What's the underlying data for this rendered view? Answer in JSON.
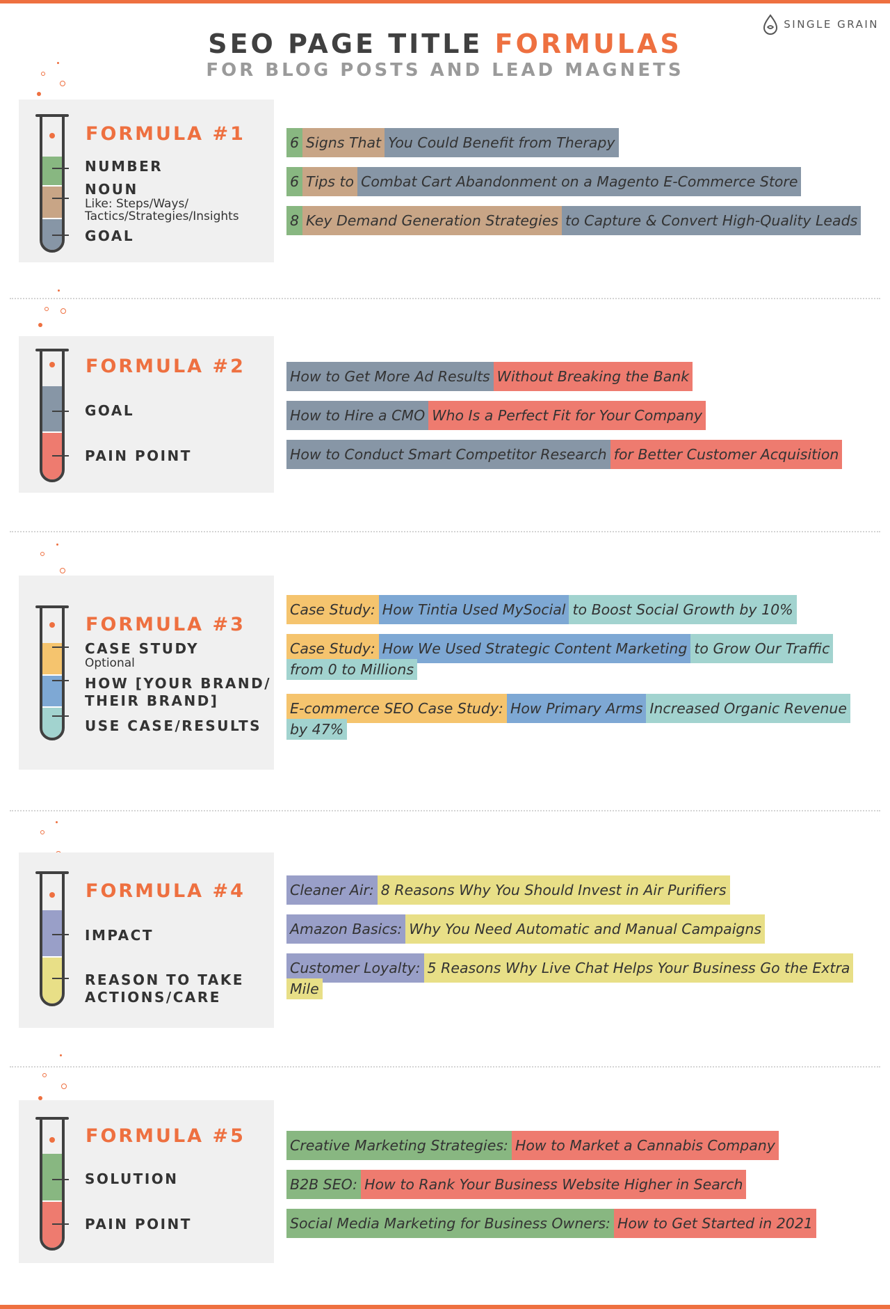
{
  "brand": {
    "name": "SINGLE GRAIN"
  },
  "header": {
    "title_main": "SEO PAGE TITLE",
    "title_accent": "FORMULAS",
    "subtitle": "FOR BLOG POSTS AND LEAD MAGNETS"
  },
  "colors": {
    "accent": "#ee7040",
    "number": "#88b781",
    "noun": "#c8a586",
    "goal": "#8796a6",
    "pain_point": "#ee7b6f",
    "case_study": "#f5c46e",
    "how_brand": "#7ea8d4",
    "use_case": "#a2d3cf",
    "impact": "#999fc8",
    "reason": "#e8df87",
    "solution": "#88b781"
  },
  "formulas": [
    {
      "title": "FORMULA #1",
      "labels": [
        "NUMBER",
        "NOUN",
        "GOAL"
      ],
      "noun_note": "Like: Steps/Ways/",
      "noun_note2": "Tactics/Strategies/Insights",
      "examples": [
        [
          "6",
          "Signs That",
          "You Could Benefit from Therapy"
        ],
        [
          "6",
          "Tips to",
          "Combat Cart Abandonment on a Magento E-Commerce Store"
        ],
        [
          "8",
          "Key Demand Generation Strategies",
          "to Capture & Convert High-Quality Leads"
        ]
      ]
    },
    {
      "title": "FORMULA #2",
      "labels": [
        "GOAL",
        "PAIN POINT"
      ],
      "examples": [
        [
          "How to Get More Ad Results",
          "Without Breaking the Bank"
        ],
        [
          "How to Hire a CMO",
          "Who Is a Perfect Fit for Your Company"
        ],
        [
          "How to Conduct Smart Competitor Research",
          "for Better Customer Acquisition"
        ]
      ]
    },
    {
      "title": "FORMULA #3",
      "labels": [
        "CASE STUDY",
        "HOW [YOUR BRAND/",
        "THEIR BRAND]",
        "USE CASE/RESULTS"
      ],
      "optional_note": "Optional",
      "examples": [
        [
          "Case Study:",
          "How Tintia Used MySocial",
          "to Boost Social Growth by 10%"
        ],
        [
          "Case Study:",
          "How We Used Strategic Content Marketing",
          "to Grow Our Traffic",
          "from 0 to Millions"
        ],
        [
          "E-commerce SEO Case Study:",
          "How Primary Arms",
          "Increased Organic Revenue",
          "by 47%"
        ]
      ]
    },
    {
      "title": "FORMULA #4",
      "labels": [
        "IMPACT",
        "REASON TO TAKE",
        "ACTIONS/CARE"
      ],
      "examples": [
        [
          "Cleaner Air:",
          "8 Reasons Why You Should Invest in Air Purifiers"
        ],
        [
          "Amazon Basics:",
          "Why You Need Automatic and Manual Campaigns"
        ],
        [
          "Customer Loyalty:",
          "5 Reasons Why Live Chat Helps Your Business Go the Extra",
          "Mile"
        ]
      ]
    },
    {
      "title": "FORMULA #5",
      "labels": [
        "SOLUTION",
        "PAIN POINT"
      ],
      "examples": [
        [
          "Creative Marketing Strategies:",
          "How to Market a Cannabis Company"
        ],
        [
          "B2B SEO:",
          "How to Rank Your Business Website Higher in Search"
        ],
        [
          "Social Media Marketing for Business Owners:",
          "How to Get Started in 2021"
        ]
      ]
    }
  ]
}
